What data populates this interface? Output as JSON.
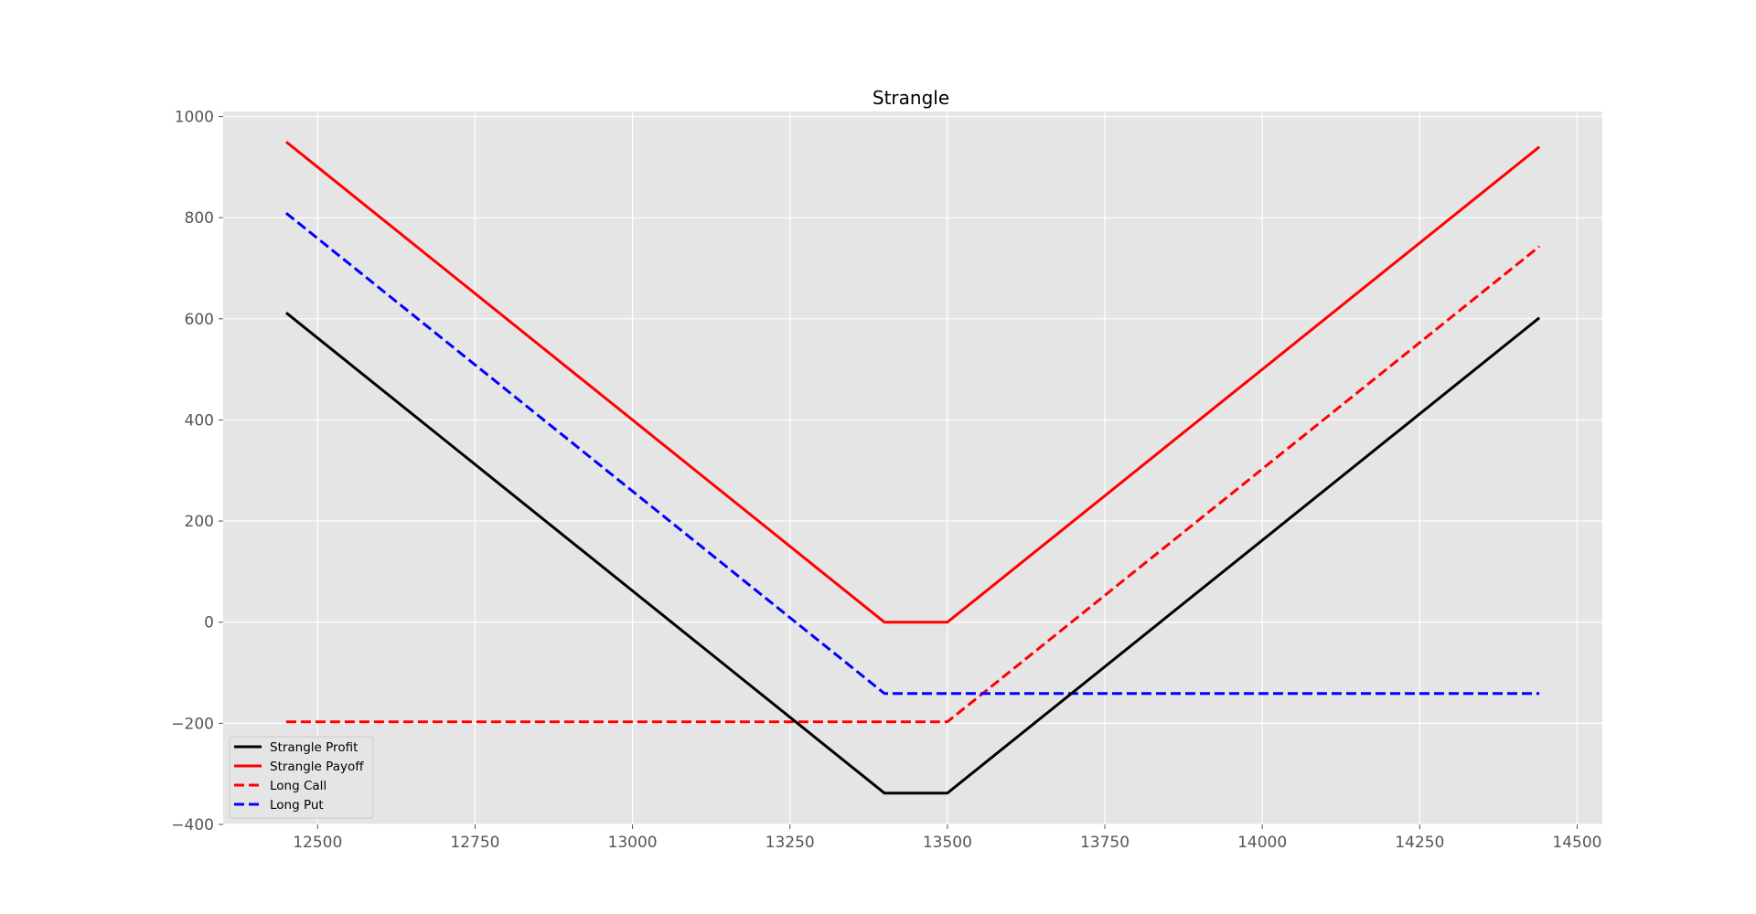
{
  "chart_data": {
    "type": "line",
    "title": "Strangle",
    "xlabel": "",
    "ylabel": "",
    "xlim": [
      12350,
      14540
    ],
    "ylim": [
      -400,
      1010
    ],
    "x_ticks": [
      12500,
      12750,
      13000,
      13250,
      13500,
      13750,
      14000,
      14250,
      14500
    ],
    "y_ticks": [
      -400,
      -200,
      0,
      200,
      400,
      600,
      800,
      1000
    ],
    "x_tick_labels": [
      "12500",
      "12750",
      "13000",
      "13250",
      "13500",
      "13750",
      "14000",
      "14250",
      "14500"
    ],
    "y_tick_labels": [
      "−400",
      "−200",
      "0",
      "200",
      "400",
      "600",
      "800",
      "1000"
    ],
    "grid": true,
    "legend_position": "bottom-left",
    "series": [
      {
        "name": "Strangle Profit",
        "color": "#000000",
        "dash": "solid",
        "x": [
          12450,
          13400,
          13500,
          14440
        ],
        "y": [
          612,
          -338,
          -338,
          602
        ]
      },
      {
        "name": "Strangle Payoff",
        "color": "#ff0000",
        "dash": "solid",
        "x": [
          12450,
          13400,
          13500,
          14440
        ],
        "y": [
          950,
          0,
          0,
          940
        ]
      },
      {
        "name": "Long Call",
        "color": "#ff0000",
        "dash": "dashed",
        "x": [
          12450,
          13500,
          14440
        ],
        "y": [
          -197,
          -197,
          743
        ]
      },
      {
        "name": "Long Put",
        "color": "#0000ff",
        "dash": "dashed",
        "x": [
          12450,
          13400,
          14440
        ],
        "y": [
          809,
          -141,
          -141
        ]
      }
    ]
  }
}
